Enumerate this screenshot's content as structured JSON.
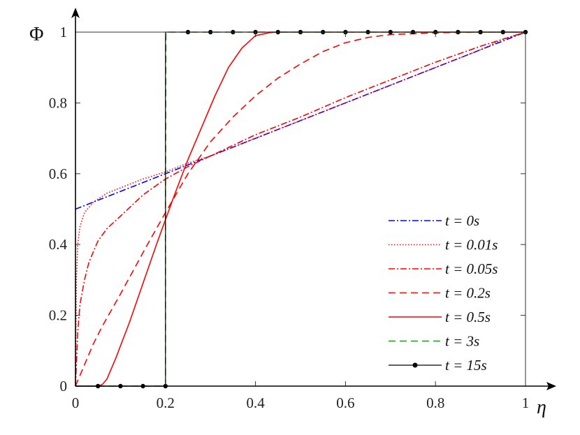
{
  "chart_data": {
    "type": "line",
    "xlabel": "η",
    "ylabel": "Φ",
    "xlim": [
      0,
      1
    ],
    "ylim": [
      0,
      1
    ],
    "xticks": [
      "0",
      "0.2",
      "0.4",
      "0.6",
      "0.8",
      "1"
    ],
    "yticks": [
      "0",
      "0.2",
      "0.4",
      "0.6",
      "0.8",
      "1"
    ],
    "legend_position": "bottom-right",
    "grid": false,
    "series": [
      {
        "name": "t = 0s",
        "color": "#0000ff",
        "style": "dashdot",
        "x": [
          0,
          1
        ],
        "y": [
          0.5,
          1
        ]
      },
      {
        "name": "t = 0.01s",
        "color": "#ff0000",
        "style": "dotted",
        "x": [
          0,
          0.002,
          0.005,
          0.01,
          0.02,
          0.04,
          0.07,
          0.1,
          0.15,
          0.2,
          0.25,
          0.3,
          0.4,
          0.5,
          0.6,
          0.7,
          0.8,
          0.9,
          0.95,
          1
        ],
        "y": [
          0,
          0.3,
          0.4,
          0.45,
          0.49,
          0.52,
          0.545,
          0.56,
          0.585,
          0.605,
          0.63,
          0.65,
          0.7,
          0.75,
          0.8,
          0.85,
          0.9,
          0.95,
          0.98,
          1
        ]
      },
      {
        "name": "t = 0.05s",
        "color": "#ff0000",
        "style": "dashdot",
        "x": [
          0,
          0.005,
          0.01,
          0.02,
          0.03,
          0.05,
          0.07,
          0.1,
          0.15,
          0.2,
          0.25,
          0.3,
          0.4,
          0.5,
          0.6,
          0.7,
          0.8,
          0.9,
          1
        ],
        "y": [
          0,
          0.15,
          0.23,
          0.3,
          0.35,
          0.41,
          0.445,
          0.48,
          0.54,
          0.585,
          0.62,
          0.65,
          0.71,
          0.76,
          0.815,
          0.865,
          0.915,
          0.96,
          1
        ]
      },
      {
        "name": "t = 0.2s",
        "color": "#ff0000",
        "style": "dashed",
        "x": [
          0,
          0.01,
          0.02,
          0.04,
          0.06,
          0.08,
          0.1,
          0.13,
          0.16,
          0.2,
          0.25,
          0.3,
          0.35,
          0.4,
          0.45,
          0.5,
          0.55,
          0.6,
          0.65,
          0.7,
          0.8,
          0.9,
          1
        ],
        "y": [
          0,
          0.03,
          0.06,
          0.12,
          0.17,
          0.215,
          0.26,
          0.33,
          0.4,
          0.49,
          0.6,
          0.69,
          0.76,
          0.82,
          0.87,
          0.91,
          0.945,
          0.97,
          0.985,
          0.993,
          0.998,
          1,
          1
        ]
      },
      {
        "name": "t = 0.5s",
        "color": "#ff0000",
        "style": "solid",
        "x": [
          0,
          0.05,
          0.06,
          0.07,
          0.09,
          0.12,
          0.15,
          0.18,
          0.2,
          0.22,
          0.25,
          0.28,
          0.31,
          0.34,
          0.37,
          0.4,
          0.43,
          0.45,
          0.5,
          0.6,
          0.8,
          1
        ],
        "y": [
          0,
          0,
          0.005,
          0.02,
          0.08,
          0.18,
          0.29,
          0.4,
          0.47,
          0.54,
          0.64,
          0.73,
          0.82,
          0.9,
          0.955,
          0.99,
          0.998,
          1,
          1,
          1,
          1,
          1
        ]
      },
      {
        "name": "t = 3s",
        "color": "#00aa00",
        "style": "dashed",
        "x": [
          0,
          0.2,
          0.2,
          0.201,
          1
        ],
        "y": [
          0,
          0,
          0.5,
          1,
          1
        ]
      },
      {
        "name": "t = 15s",
        "color": "#000000",
        "style": "solid-marker",
        "x": [
          0,
          0.05,
          0.1,
          0.15,
          0.2,
          0.2,
          0.25,
          0.3,
          0.35,
          0.4,
          0.45,
          0.5,
          0.55,
          0.6,
          0.65,
          0.7,
          0.75,
          0.8,
          0.85,
          0.9,
          0.95,
          1
        ],
        "y": [
          0,
          0,
          0,
          0,
          0,
          1,
          1,
          1,
          1,
          1,
          1,
          1,
          1,
          1,
          1,
          1,
          1,
          1,
          1,
          1,
          1,
          1
        ]
      }
    ]
  }
}
